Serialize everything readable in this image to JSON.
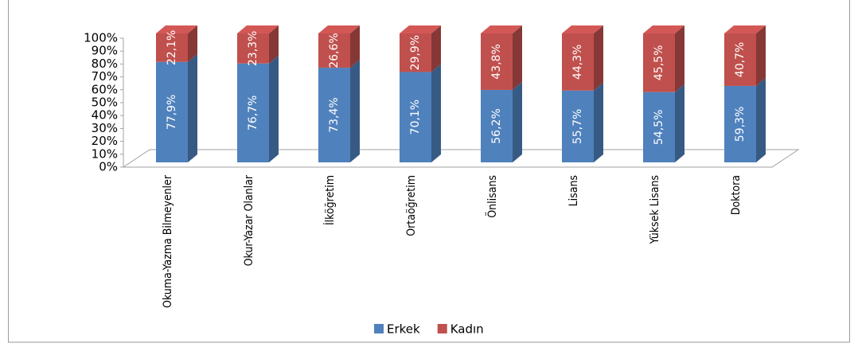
{
  "chart_data": {
    "type": "bar3d_stacked",
    "categories": [
      "Okuma-Yazma Bilmeyenler",
      "Okur-Yazar Olanlar",
      "İlköğretim",
      "Ortaöğretim",
      "Önlisans",
      "Lisans",
      "Yüksek Lisans",
      "Doktora"
    ],
    "series": [
      {
        "name": "Erkek",
        "color": "#4f81bd",
        "values": [
          77.9,
          76.7,
          73.4,
          70.1,
          56.2,
          55.7,
          54.5,
          59.3
        ],
        "value_labels": [
          "77,9%",
          "76,7%",
          "73,4%",
          "70,1%",
          "56,2%",
          "55,7%",
          "54,5%",
          "59,3%"
        ]
      },
      {
        "name": "Kadın",
        "color": "#c0504d",
        "values": [
          22.1,
          23.3,
          26.6,
          29.9,
          43.8,
          44.3,
          45.5,
          40.7
        ],
        "value_labels": [
          "22,1%",
          "23,3%",
          "26,6%",
          "29,9%",
          "43,8%",
          "44,3%",
          "45,5%",
          "40,7%"
        ]
      }
    ],
    "ylim": [
      0,
      100
    ],
    "yticks": [
      {
        "value": 0,
        "label": "0%"
      },
      {
        "value": 10,
        "label": "10%"
      },
      {
        "value": 20,
        "label": "20%"
      },
      {
        "value": 30,
        "label": "30%"
      },
      {
        "value": 40,
        "label": "40%"
      },
      {
        "value": 50,
        "label": "50%"
      },
      {
        "value": 60,
        "label": "60%"
      },
      {
        "value": 70,
        "label": "70%"
      },
      {
        "value": 80,
        "label": "80%"
      },
      {
        "value": 90,
        "label": "90%"
      },
      {
        "value": 100,
        "label": "100%"
      }
    ],
    "legend": "bottom"
  }
}
